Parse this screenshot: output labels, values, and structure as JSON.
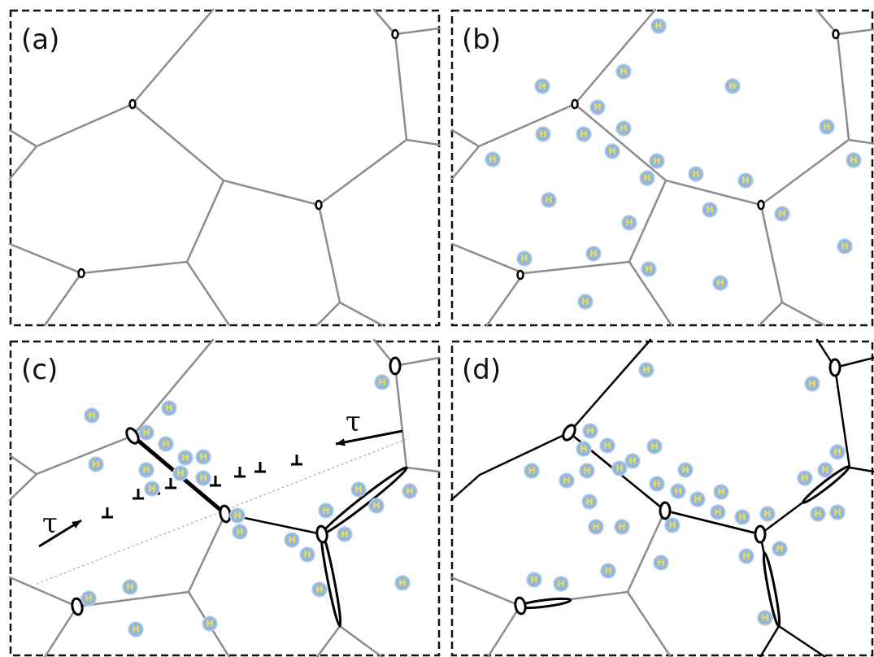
{
  "panel_labels": [
    "(a)",
    "(b)",
    "(c)",
    "(d)"
  ],
  "hydrogen_label": "H",
  "shear_label": "τ"
}
